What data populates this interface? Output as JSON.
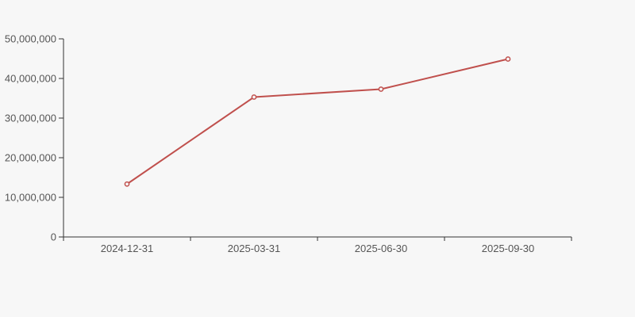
{
  "chart_data": {
    "type": "line",
    "title": "",
    "xlabel": "",
    "ylabel": "",
    "categories": [
      "2024-12-31",
      "2025-03-31",
      "2025-06-30",
      "2025-09-30"
    ],
    "values": [
      13350000,
      35300000,
      37300000,
      44900000
    ],
    "ylim": [
      0,
      50000000
    ],
    "ytick_step": 10000000,
    "ytick_labels": [
      "0",
      "10,000,000",
      "20,000,000",
      "30,000,000",
      "40,000,000",
      "50,000,000"
    ],
    "grid": false,
    "legend": false,
    "marker": "open-circle",
    "colors": {
      "line": "#c0504d",
      "marker_fill": "#f7f7f7",
      "axis": "#333333",
      "label": "#555555",
      "background": "#f7f7f7"
    }
  }
}
